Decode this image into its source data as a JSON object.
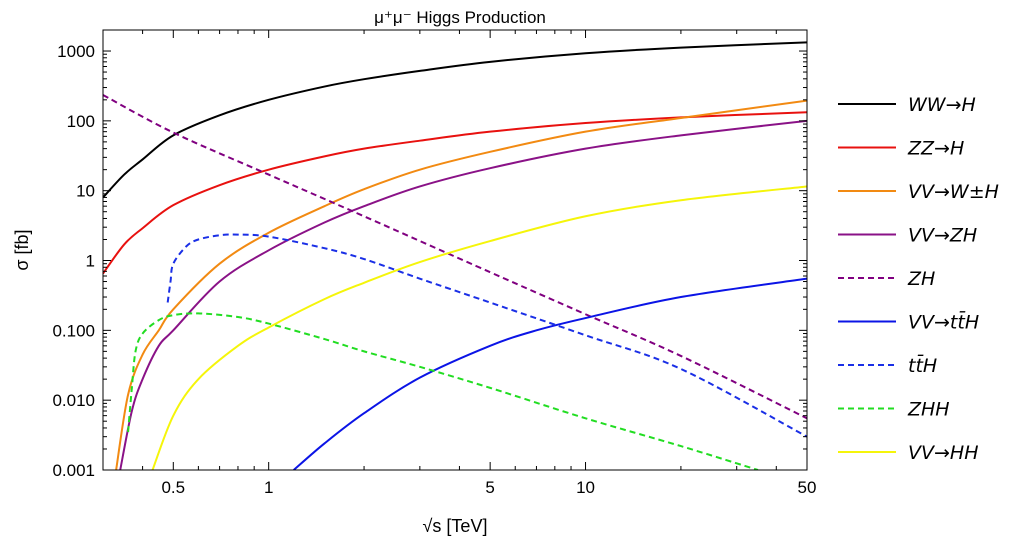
{
  "chart_data": {
    "type": "line",
    "title": "μ⁺μ⁻ Higgs Production",
    "xlabel": "√s [TeV]",
    "ylabel": "σ [fb]",
    "xscale": "log",
    "yscale": "log",
    "xlim": [
      0.3,
      50
    ],
    "ylim": [
      0.001,
      2000
    ],
    "x_ticks": [
      {
        "value": 0.5,
        "label": "0.5"
      },
      {
        "value": 1,
        "label": "1"
      },
      {
        "value": 5,
        "label": "5"
      },
      {
        "value": 10,
        "label": "10"
      },
      {
        "value": 50,
        "label": "50"
      }
    ],
    "y_ticks": [
      {
        "value": 0.001,
        "label": "0.001"
      },
      {
        "value": 0.01,
        "label": "0.010"
      },
      {
        "value": 0.1,
        "label": "0.100"
      },
      {
        "value": 1,
        "label": "1"
      },
      {
        "value": 10,
        "label": "10"
      },
      {
        "value": 100,
        "label": "100"
      },
      {
        "value": 1000,
        "label": "1000"
      }
    ],
    "grid": false,
    "legend_position": "right",
    "series": [
      {
        "name": "WW→H",
        "color": "#000000",
        "dash": "solid",
        "x": [
          0.3,
          0.35,
          0.4,
          0.5,
          0.7,
          1,
          1.5,
          2,
          3,
          5,
          10,
          20,
          50
        ],
        "y": [
          8,
          17,
          28,
          62,
          120,
          200,
          310,
          395,
          520,
          700,
          930,
          1120,
          1330
        ]
      },
      {
        "name": "ZZ→H",
        "color": "#e8110f",
        "dash": "solid",
        "x": [
          0.3,
          0.35,
          0.4,
          0.5,
          0.7,
          1,
          1.5,
          2,
          3,
          5,
          10,
          20,
          50
        ],
        "y": [
          0.65,
          1.7,
          2.9,
          6.2,
          12,
          20,
          31,
          40,
          52,
          70,
          93,
          112,
          133
        ]
      },
      {
        "name": "VV→W±H",
        "color": "#f28a12",
        "dash": "solid",
        "x": [
          0.33,
          0.36,
          0.4,
          0.45,
          0.5,
          0.7,
          1,
          1.5,
          2,
          3,
          5,
          10,
          20,
          50
        ],
        "y": [
          0.001,
          0.012,
          0.045,
          0.1,
          0.2,
          0.9,
          2.5,
          6,
          10.5,
          20,
          36,
          70,
          110,
          195
        ]
      },
      {
        "name": "VV→ZH",
        "color": "#8a1287",
        "dash": "solid",
        "x": [
          0.34,
          0.37,
          0.4,
          0.45,
          0.5,
          0.7,
          1,
          1.5,
          2,
          3,
          5,
          10,
          20,
          50
        ],
        "y": [
          0.001,
          0.007,
          0.02,
          0.06,
          0.1,
          0.5,
          1.4,
          3.5,
          6,
          11.5,
          21,
          40,
          62,
          100
        ]
      },
      {
        "name": "ZH",
        "color": "#800080",
        "dash": "dashed",
        "x": [
          0.3,
          0.5,
          1,
          2,
          5,
          10,
          20,
          50
        ],
        "y": [
          235,
          68,
          17,
          4.3,
          0.68,
          0.17,
          0.043,
          0.0055
        ]
      },
      {
        "name": "VV→tt̄H",
        "color": "#0b14e6",
        "dash": "solid",
        "x": [
          1.2,
          1.5,
          2,
          3,
          5,
          7,
          10,
          20,
          50
        ],
        "y": [
          0.001,
          0.0024,
          0.0065,
          0.021,
          0.06,
          0.1,
          0.15,
          0.3,
          0.55
        ]
      },
      {
        "name": "tt̄H",
        "color": "#1a2fe6",
        "dash": "dashed",
        "x": [
          0.48,
          0.49,
          0.5,
          0.55,
          0.6,
          0.7,
          0.8,
          1,
          1.5,
          2,
          3,
          5,
          10,
          20,
          50
        ],
        "y": [
          0.25,
          0.5,
          0.9,
          1.6,
          2.0,
          2.3,
          2.35,
          2.2,
          1.5,
          1.05,
          0.55,
          0.25,
          0.085,
          0.028,
          0.003
        ]
      },
      {
        "name": "ZHH",
        "color": "#22dd22",
        "dash": "dashed",
        "x": [
          0.36,
          0.37,
          0.38,
          0.4,
          0.45,
          0.5,
          0.6,
          0.8,
          1,
          1.5,
          2,
          3,
          5,
          10,
          20,
          35
        ],
        "y": [
          0.0035,
          0.015,
          0.05,
          0.09,
          0.14,
          0.165,
          0.175,
          0.155,
          0.125,
          0.075,
          0.05,
          0.03,
          0.015,
          0.0055,
          0.0022,
          0.001
        ]
      },
      {
        "name": "VV→HH",
        "color": "#f5f50a",
        "dash": "solid",
        "x": [
          0.43,
          0.5,
          0.6,
          0.8,
          1,
          1.5,
          2,
          3,
          5,
          10,
          20,
          50
        ],
        "y": [
          0.001,
          0.006,
          0.02,
          0.06,
          0.11,
          0.28,
          0.48,
          0.95,
          1.9,
          4.3,
          7.3,
          11.5
        ]
      }
    ]
  }
}
